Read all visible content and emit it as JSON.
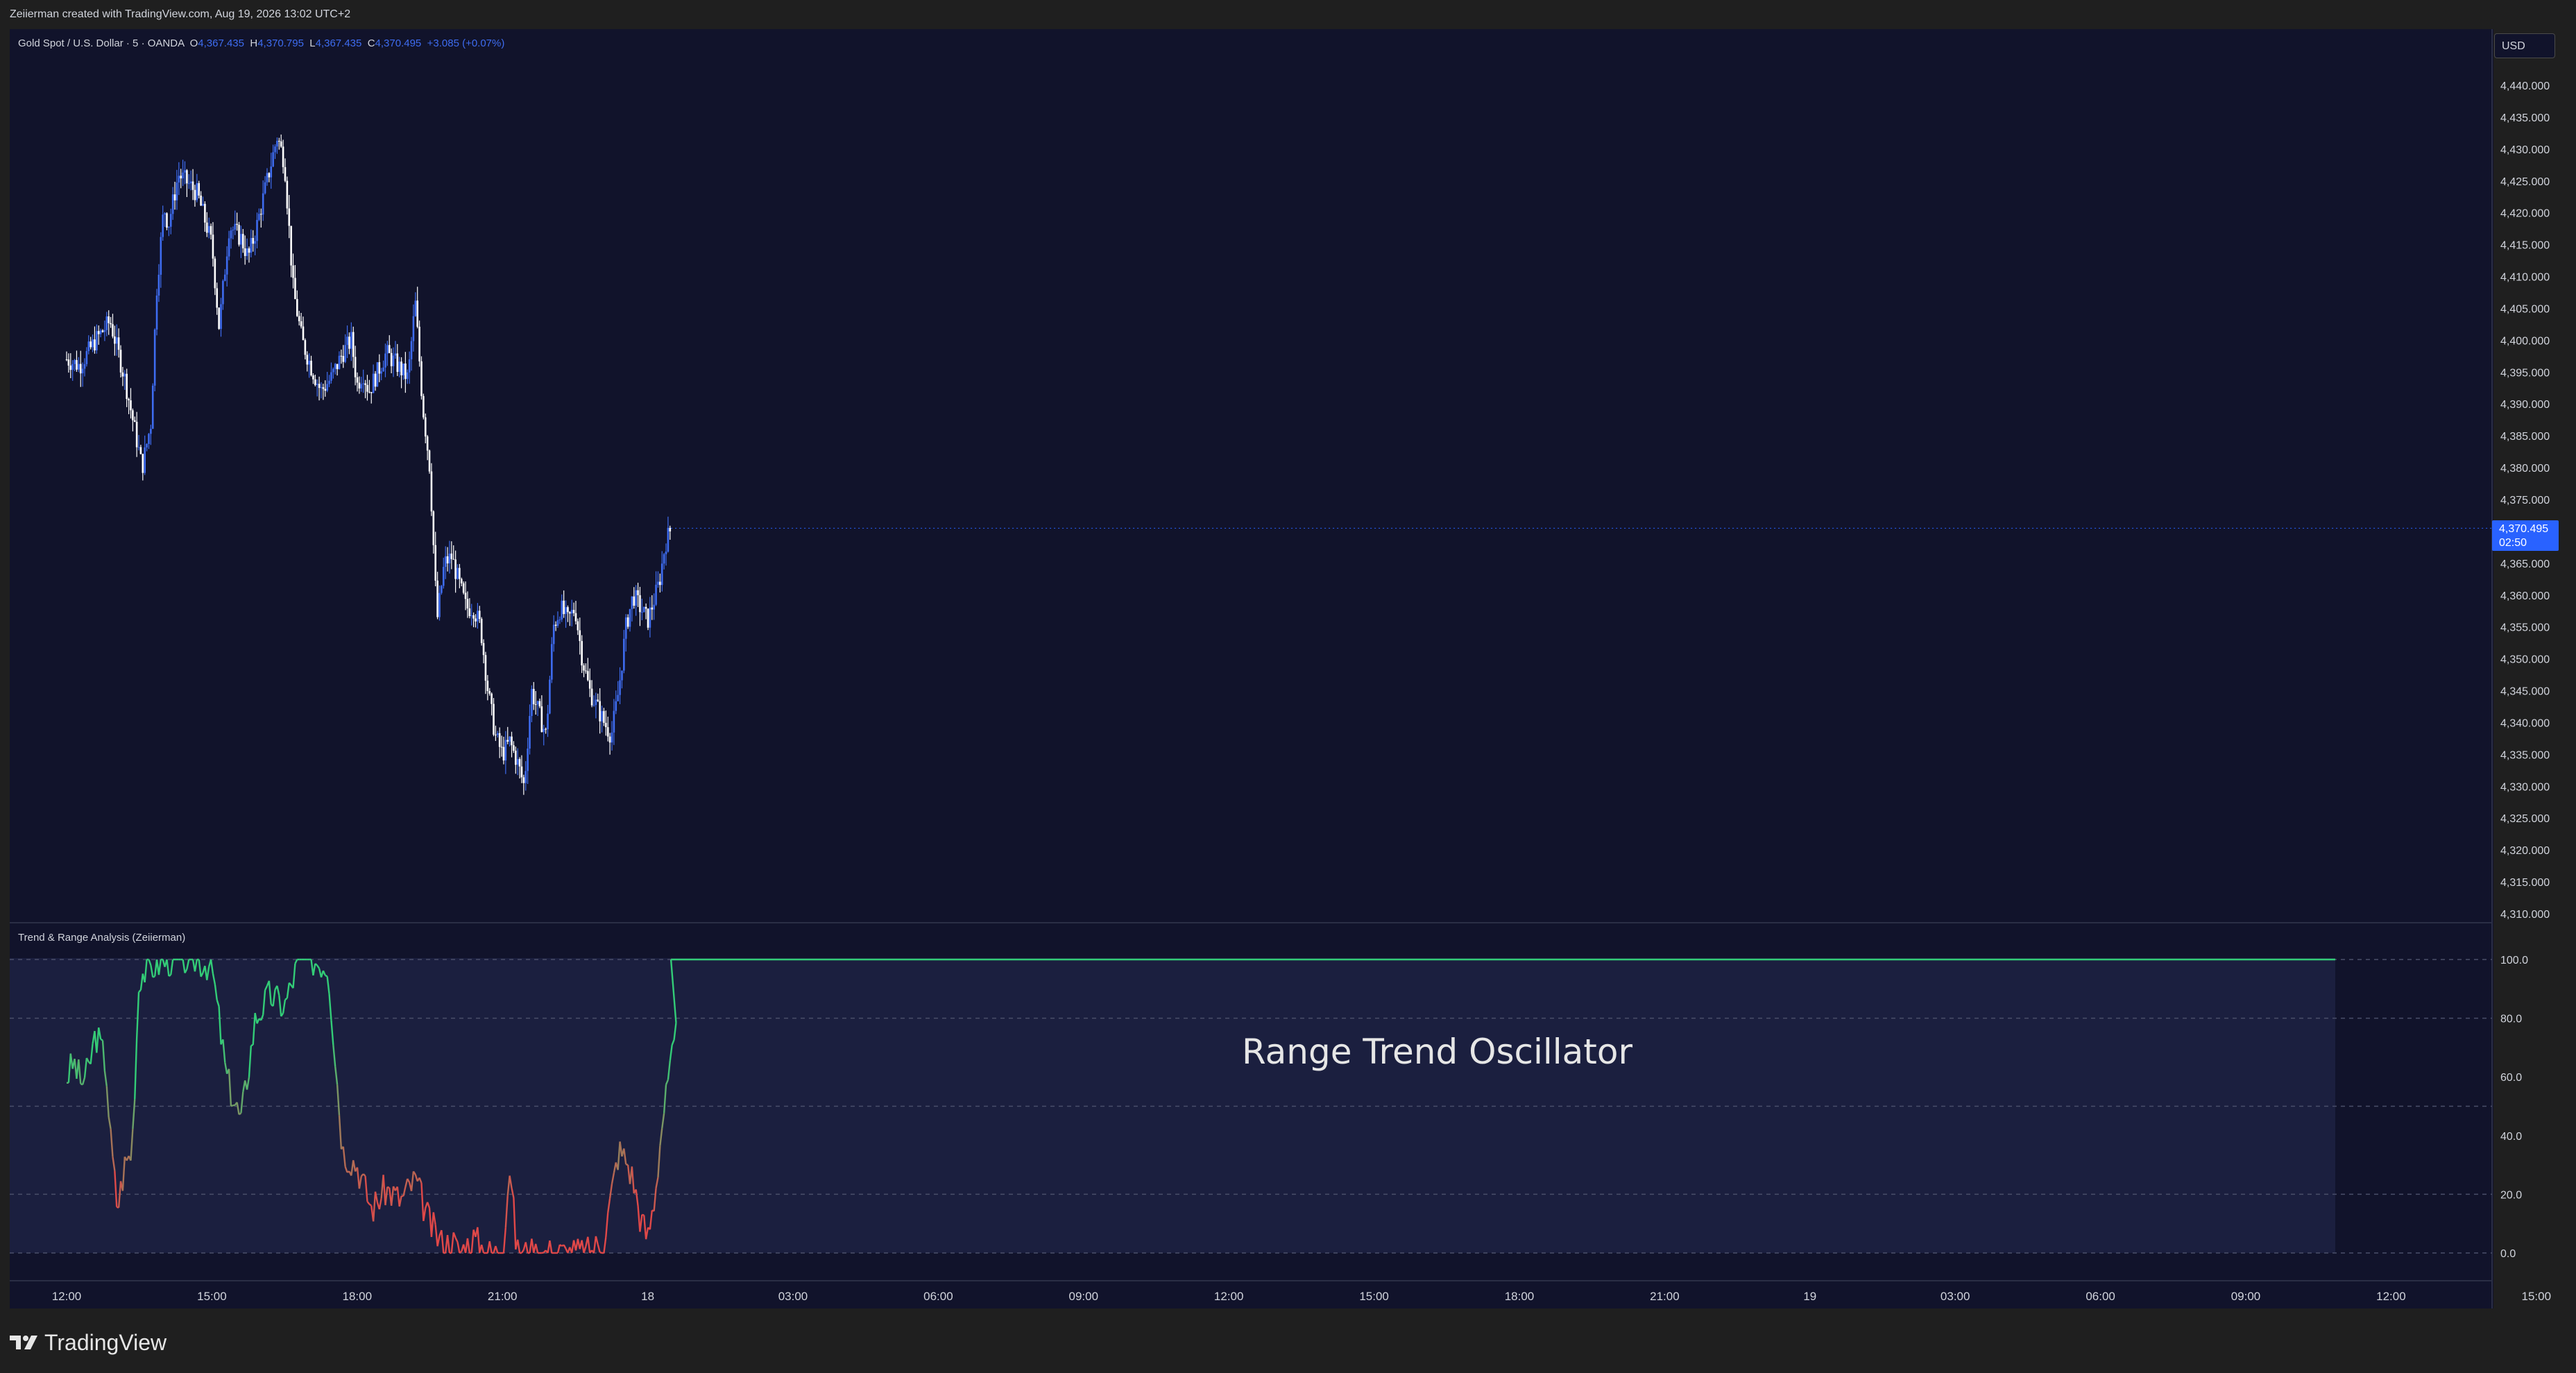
{
  "header": {
    "attribution": "Zeiierman created with TradingView.com, Aug 19, 2026 13:02 UTC+2"
  },
  "legend": {
    "symbol": "Gold Spot / U.S. Dollar · 5 · OANDA",
    "o_label": "O",
    "o_value": "4,367.435",
    "h_label": "H",
    "h_value": "4,370.795",
    "l_label": "L",
    "l_value": "4,367.435",
    "c_label": "C",
    "c_value": "4,370.495",
    "change": "+3.085 (+0.07%)"
  },
  "currency_button": "USD",
  "last_price": {
    "value": "4,370.495",
    "countdown": "02:50"
  },
  "indicator": {
    "title": "Trend & Range Analysis (Zeiierman)",
    "watermark": "Range Trend Oscillator"
  },
  "price_axis": {
    "labels": [
      "4,440.000",
      "4,435.000",
      "4,430.000",
      "4,425.000",
      "4,420.000",
      "4,415.000",
      "4,410.000",
      "4,405.000",
      "4,400.000",
      "4,395.000",
      "4,390.000",
      "4,385.000",
      "4,380.000",
      "4,375.000",
      "4,370.000",
      "4,365.000",
      "4,360.000",
      "4,355.000",
      "4,350.000",
      "4,345.000",
      "4,340.000",
      "4,335.000",
      "4,330.000",
      "4,325.000",
      "4,320.000",
      "4,315.000",
      "4,310.000"
    ]
  },
  "osc_axis": {
    "labels": [
      "100.0",
      "80.0",
      "60.0",
      "40.0",
      "20.0",
      "0.0"
    ]
  },
  "time_axis": {
    "labels": [
      "12:00",
      "15:00",
      "18:00",
      "21:00",
      "18",
      "03:00",
      "06:00",
      "09:00",
      "12:00",
      "15:00",
      "18:00",
      "21:00",
      "19",
      "03:00",
      "06:00",
      "09:00",
      "12:00",
      "15:00"
    ]
  },
  "brand": {
    "name": "TradingView"
  },
  "colors": {
    "background": "#11132b",
    "frame": "#1f1f1f",
    "up_candle": "#3e6cf0",
    "down_candle": "#ffffff",
    "trend_green": "#33cc77",
    "range_red": "#e04848",
    "accent": "#2962ff"
  },
  "chart_data": [
    {
      "type": "candlestick",
      "title": "Gold Spot / U.S. Dollar · 5 · OANDA",
      "ylim": [
        4310,
        4440
      ],
      "x": [
        "12:00",
        "15:00",
        "18:00",
        "21:00",
        "18",
        "03:00",
        "06:00",
        "09:00",
        "12:00",
        "15:00",
        "18:00",
        "21:00",
        "19",
        "03:00",
        "06:00",
        "09:00",
        "12:00",
        "15:00"
      ],
      "close_path_x": [
        0,
        0.09,
        0.2,
        0.3,
        0.4,
        0.52,
        0.58,
        0.62,
        0.67,
        0.7,
        0.77,
        0.82,
        0.9,
        1.0,
        1.05,
        1.12,
        1.2,
        1.25,
        1.3,
        1.38,
        1.45,
        1.5,
        1.56,
        1.62,
        1.68,
        1.75,
        1.82,
        1.9,
        1.96,
        2.0,
        2.04,
        2.08,
        2.12,
        2.2,
        2.28,
        2.35,
        2.4,
        2.45,
        2.5,
        2.55,
        2.6,
        2.65,
        2.7,
        2.75,
        2.8,
        2.85,
        2.9,
        2.95,
        3.0,
        3.05,
        3.1,
        3.15,
        3.2,
        3.3,
        3.35,
        3.4,
        3.45,
        3.5,
        3.55,
        3.6,
        3.7,
        3.75,
        3.8,
        3.85,
        3.9,
        3.95,
        4.0,
        4.08,
        4.12,
        4.16
      ],
      "close_path_y": [
        4397,
        4396,
        4400,
        4403,
        4394,
        4380,
        4387,
        4408,
        4421,
        4418,
        4426,
        4425,
        4423,
        4415,
        4402,
        4418,
        4416,
        4413,
        4417,
        4425,
        4432,
        4428,
        4408,
        4400,
        4396,
        4392,
        4394,
        4398,
        4400,
        4393,
        4395,
        4392,
        4394,
        4398,
        4396,
        4394,
        4406,
        4390,
        4380,
        4356,
        4365,
        4366,
        4362,
        4358,
        4358,
        4355,
        4345,
        4338,
        4335,
        4337,
        4334,
        4330,
        4345,
        4338,
        4355,
        4358,
        4356,
        4358,
        4350,
        4345,
        4340,
        4338,
        4345,
        4355,
        4360,
        4358,
        4356,
        4362,
        4368,
        4370.5
      ]
    },
    {
      "type": "line",
      "title": "Trend & Range Analysis (Zeiierman)",
      "ylim": [
        0,
        100
      ],
      "x": [
        0,
        0.05,
        0.1,
        0.15,
        0.2,
        0.27,
        0.3,
        0.35,
        0.4,
        0.45,
        0.5,
        0.6,
        0.7,
        0.8,
        0.9,
        1.0,
        1.1,
        1.2,
        1.3,
        1.4,
        1.5,
        1.6,
        1.65,
        1.7,
        1.8,
        1.9,
        2.0,
        2.1,
        2.2,
        2.3,
        2.4,
        2.5,
        2.6,
        2.65,
        2.7,
        2.8,
        2.9,
        3.0,
        3.05,
        3.1,
        3.2,
        3.3,
        3.4,
        3.5,
        3.6,
        3.7,
        3.75,
        3.8,
        3.85,
        3.9,
        3.95,
        4.0,
        4.05,
        4.1,
        4.2
      ],
      "values": [
        60,
        65,
        58,
        62,
        75,
        65,
        40,
        15,
        30,
        35,
        95,
        98,
        100,
        100,
        100,
        98,
        60,
        45,
        80,
        88,
        84,
        100,
        100,
        100,
        98,
        35,
        30,
        15,
        22,
        18,
        25,
        10,
        2,
        5,
        0,
        5,
        0,
        0,
        30,
        0,
        0,
        0,
        0,
        0,
        0,
        5,
        20,
        35,
        32,
        25,
        12,
        5,
        20,
        45,
        75
      ],
      "series_colors_note": "",
      "grid_levels": [
        100,
        80,
        50,
        20,
        0
      ]
    }
  ]
}
